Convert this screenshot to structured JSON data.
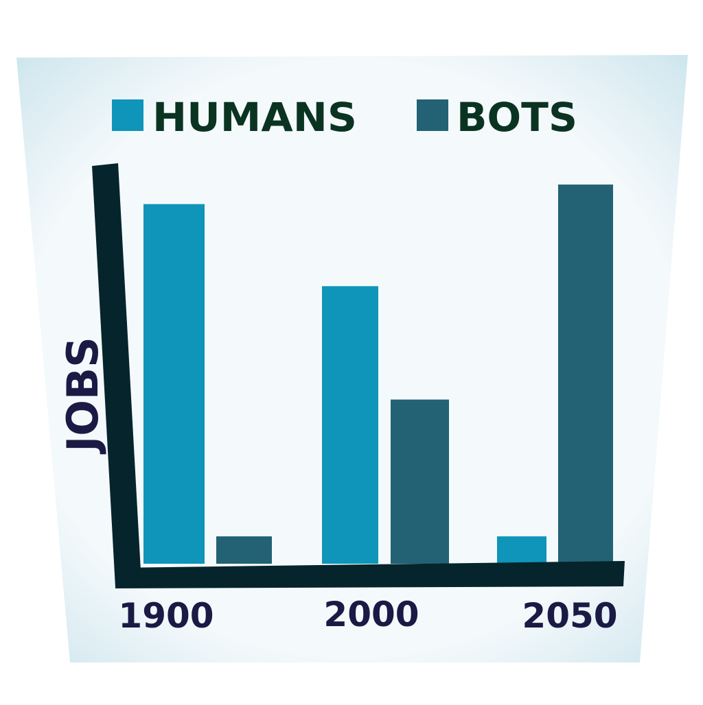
{
  "chart_data": {
    "type": "bar",
    "title": "",
    "xlabel": "",
    "ylabel": "JOBS",
    "categories": [
      "1900",
      "2000",
      "2050"
    ],
    "ylim": [
      0,
      100
    ],
    "grid": false,
    "legend_position": "top",
    "series": [
      {
        "name": "HUMANS",
        "color": "#0e95b9",
        "values": [
          92,
          71,
          7
        ]
      },
      {
        "name": "BOTS",
        "color": "#226274",
        "values": [
          7,
          42,
          97
        ]
      }
    ]
  },
  "colors": {
    "panel": "#f4f9fb",
    "panel_edge": "#cfe6ee",
    "axis": "#06242c",
    "legend_text": "#0b3322",
    "tick_text": "#1a1a45"
  }
}
